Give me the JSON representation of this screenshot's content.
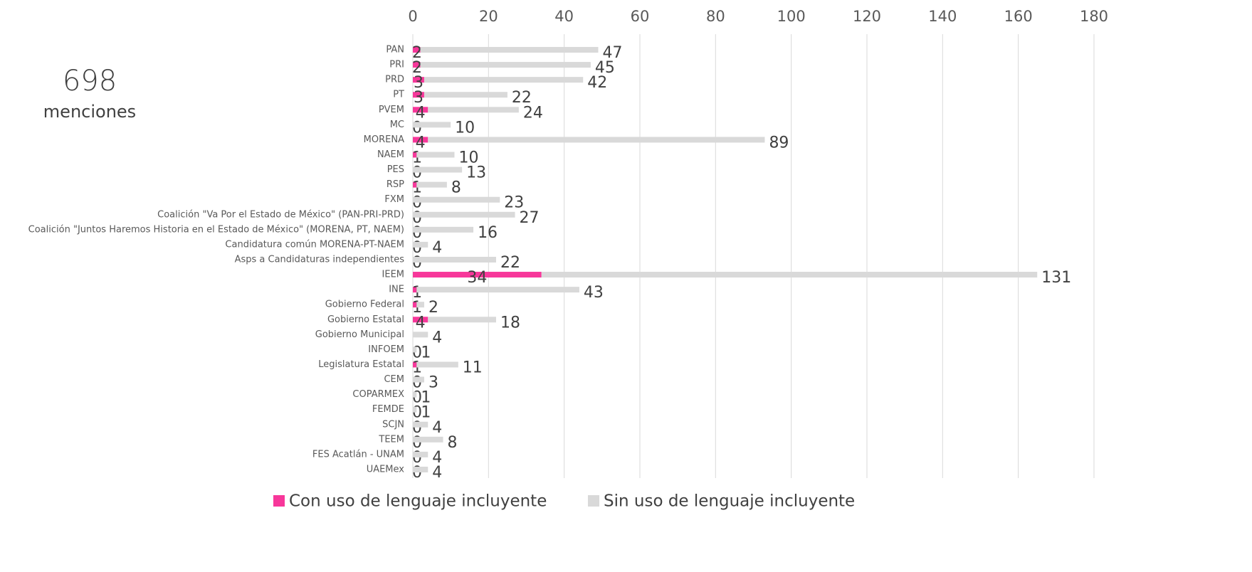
{
  "chart_data": {
    "type": "stacked-bar-horizontal",
    "total_label": "698",
    "total_caption": "menciones",
    "categories": [
      "PAN",
      "PRI",
      "PRD",
      "PT",
      "PVEM",
      "MC",
      "MORENA",
      "NAEM",
      "PES",
      "RSP",
      "FXM",
      "Coalición \"Va Por el Estado de México\" (PAN-PRI-PRD)",
      "Coalición \"Juntos Haremos Historia en el Estado de México\" (MORENA, PT, NAEM)",
      "Candidatura común MORENA-PT-NAEM",
      "Asps a Candidaturas independientes",
      "IEEM",
      "INE",
      "Gobierno Federal",
      "Gobierno Estatal",
      "Gobierno Municipal",
      "INFOEM",
      "Legislatura Estatal",
      "CEM",
      "COPARMEX",
      "FEMDE",
      "SCJN",
      "TEEM",
      "FES Acatlán - UNAM",
      "UAEMex"
    ],
    "series": [
      {
        "name": "Con uso de lenguaje incluyente",
        "color": "#f7379a",
        "values": [
          2,
          2,
          3,
          3,
          4,
          0,
          4,
          1,
          0,
          1,
          0,
          0,
          0,
          0,
          0,
          34,
          1,
          1,
          4,
          null,
          0,
          1,
          0,
          0,
          0,
          0,
          0,
          0,
          0
        ]
      },
      {
        "name": "Sin uso de lenguaje incluyente",
        "color": "#d9d9d9",
        "values": [
          47,
          45,
          42,
          22,
          24,
          10,
          89,
          10,
          13,
          8,
          23,
          27,
          16,
          4,
          22,
          131,
          43,
          2,
          18,
          4,
          1,
          11,
          3,
          1,
          1,
          4,
          8,
          4,
          4
        ]
      }
    ],
    "xlim": [
      0,
      180
    ],
    "xticks": [
      0,
      20,
      40,
      60,
      80,
      100,
      120,
      140,
      160,
      180
    ],
    "grid": true
  }
}
